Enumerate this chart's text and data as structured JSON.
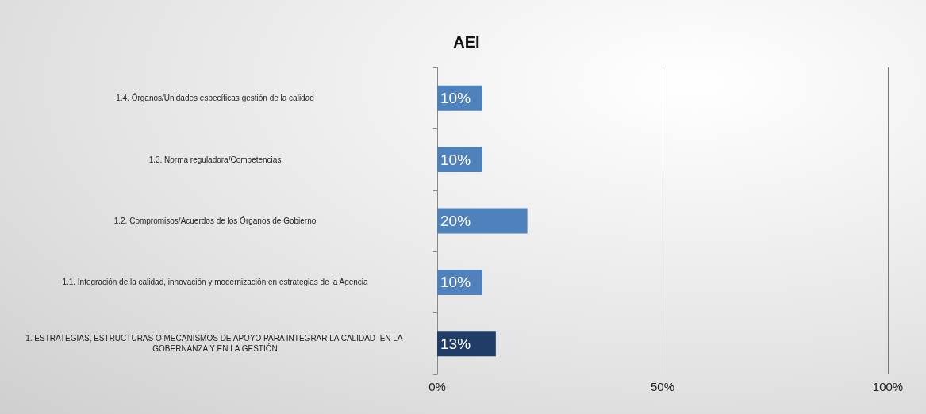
{
  "chart_data": {
    "type": "bar",
    "title": "AEI",
    "orientation": "horizontal",
    "categories": [
      "1.4. Órganos/Unidades específicas gestión de la calidad",
      "1.3. Norma reguladora/Competencias",
      "1.2. Compromisos/Acuerdos de los Órganos de Gobierno",
      "1.1. Integración de la calidad, innovación y modernización en estrategias de la Agencia",
      "1. ESTRATEGIAS, ESTRUCTURAS O MECANISMOS DE APOYO PARA INTEGRAR LA CALIDAD  EN LA GOBERNANZA Y EN LA GESTIÓN"
    ],
    "values": [
      10,
      10,
      20,
      10,
      13
    ],
    "colors": [
      "#4f81bd",
      "#4f81bd",
      "#4f81bd",
      "#4f81bd",
      "#1f3d66"
    ],
    "value_labels": [
      "10%",
      "10%",
      "20%",
      "10%",
      "13%"
    ],
    "xlim": [
      0,
      100
    ],
    "xticks": [
      {
        "value": 0,
        "label": "0%"
      },
      {
        "value": 50,
        "label": "50%"
      },
      {
        "value": 100,
        "label": "100%"
      }
    ],
    "grid": "x"
  }
}
